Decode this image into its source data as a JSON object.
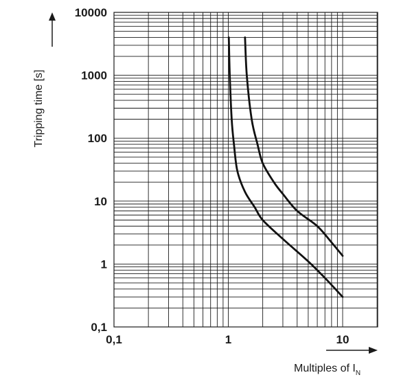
{
  "chart_data": {
    "type": "line",
    "title": "",
    "xlabel": "Multiples of I",
    "xlabel_subscript": "N",
    "ylabel": "Tripping time [s]",
    "xscale": "log",
    "yscale": "log",
    "xlim": [
      0.1,
      20
    ],
    "ylim": [
      0.1,
      10000
    ],
    "xticks": [
      {
        "value": 0.1,
        "label": "0,1"
      },
      {
        "value": 1,
        "label": "1"
      },
      {
        "value": 10,
        "label": "10"
      }
    ],
    "yticks": [
      {
        "value": 10000,
        "label": "10000"
      },
      {
        "value": 1000,
        "label": "1000"
      },
      {
        "value": 100,
        "label": "100"
      },
      {
        "value": 10,
        "label": "10"
      },
      {
        "value": 1,
        "label": "1"
      },
      {
        "value": 0.1,
        "label": "0,1"
      }
    ],
    "grid": true,
    "legend": "none",
    "series": [
      {
        "points": [
          [
            1.01,
            4000
          ],
          [
            1.03,
            1000
          ],
          [
            1.07,
            200
          ],
          [
            1.12,
            80
          ],
          [
            1.2,
            30
          ],
          [
            1.4,
            14
          ],
          [
            1.7,
            8
          ],
          [
            2.0,
            5
          ],
          [
            3.0,
            2.5
          ],
          [
            5.0,
            1.1
          ],
          [
            7.0,
            0.6
          ],
          [
            10.0,
            0.3
          ]
        ]
      },
      {
        "points": [
          [
            1.4,
            4000
          ],
          [
            1.45,
            1000
          ],
          [
            1.6,
            200
          ],
          [
            1.8,
            80
          ],
          [
            2.0,
            40
          ],
          [
            2.5,
            20
          ],
          [
            3.0,
            13
          ],
          [
            4.0,
            7
          ],
          [
            6.0,
            4
          ],
          [
            8.0,
            2.2
          ],
          [
            10.0,
            1.35
          ]
        ]
      }
    ]
  }
}
